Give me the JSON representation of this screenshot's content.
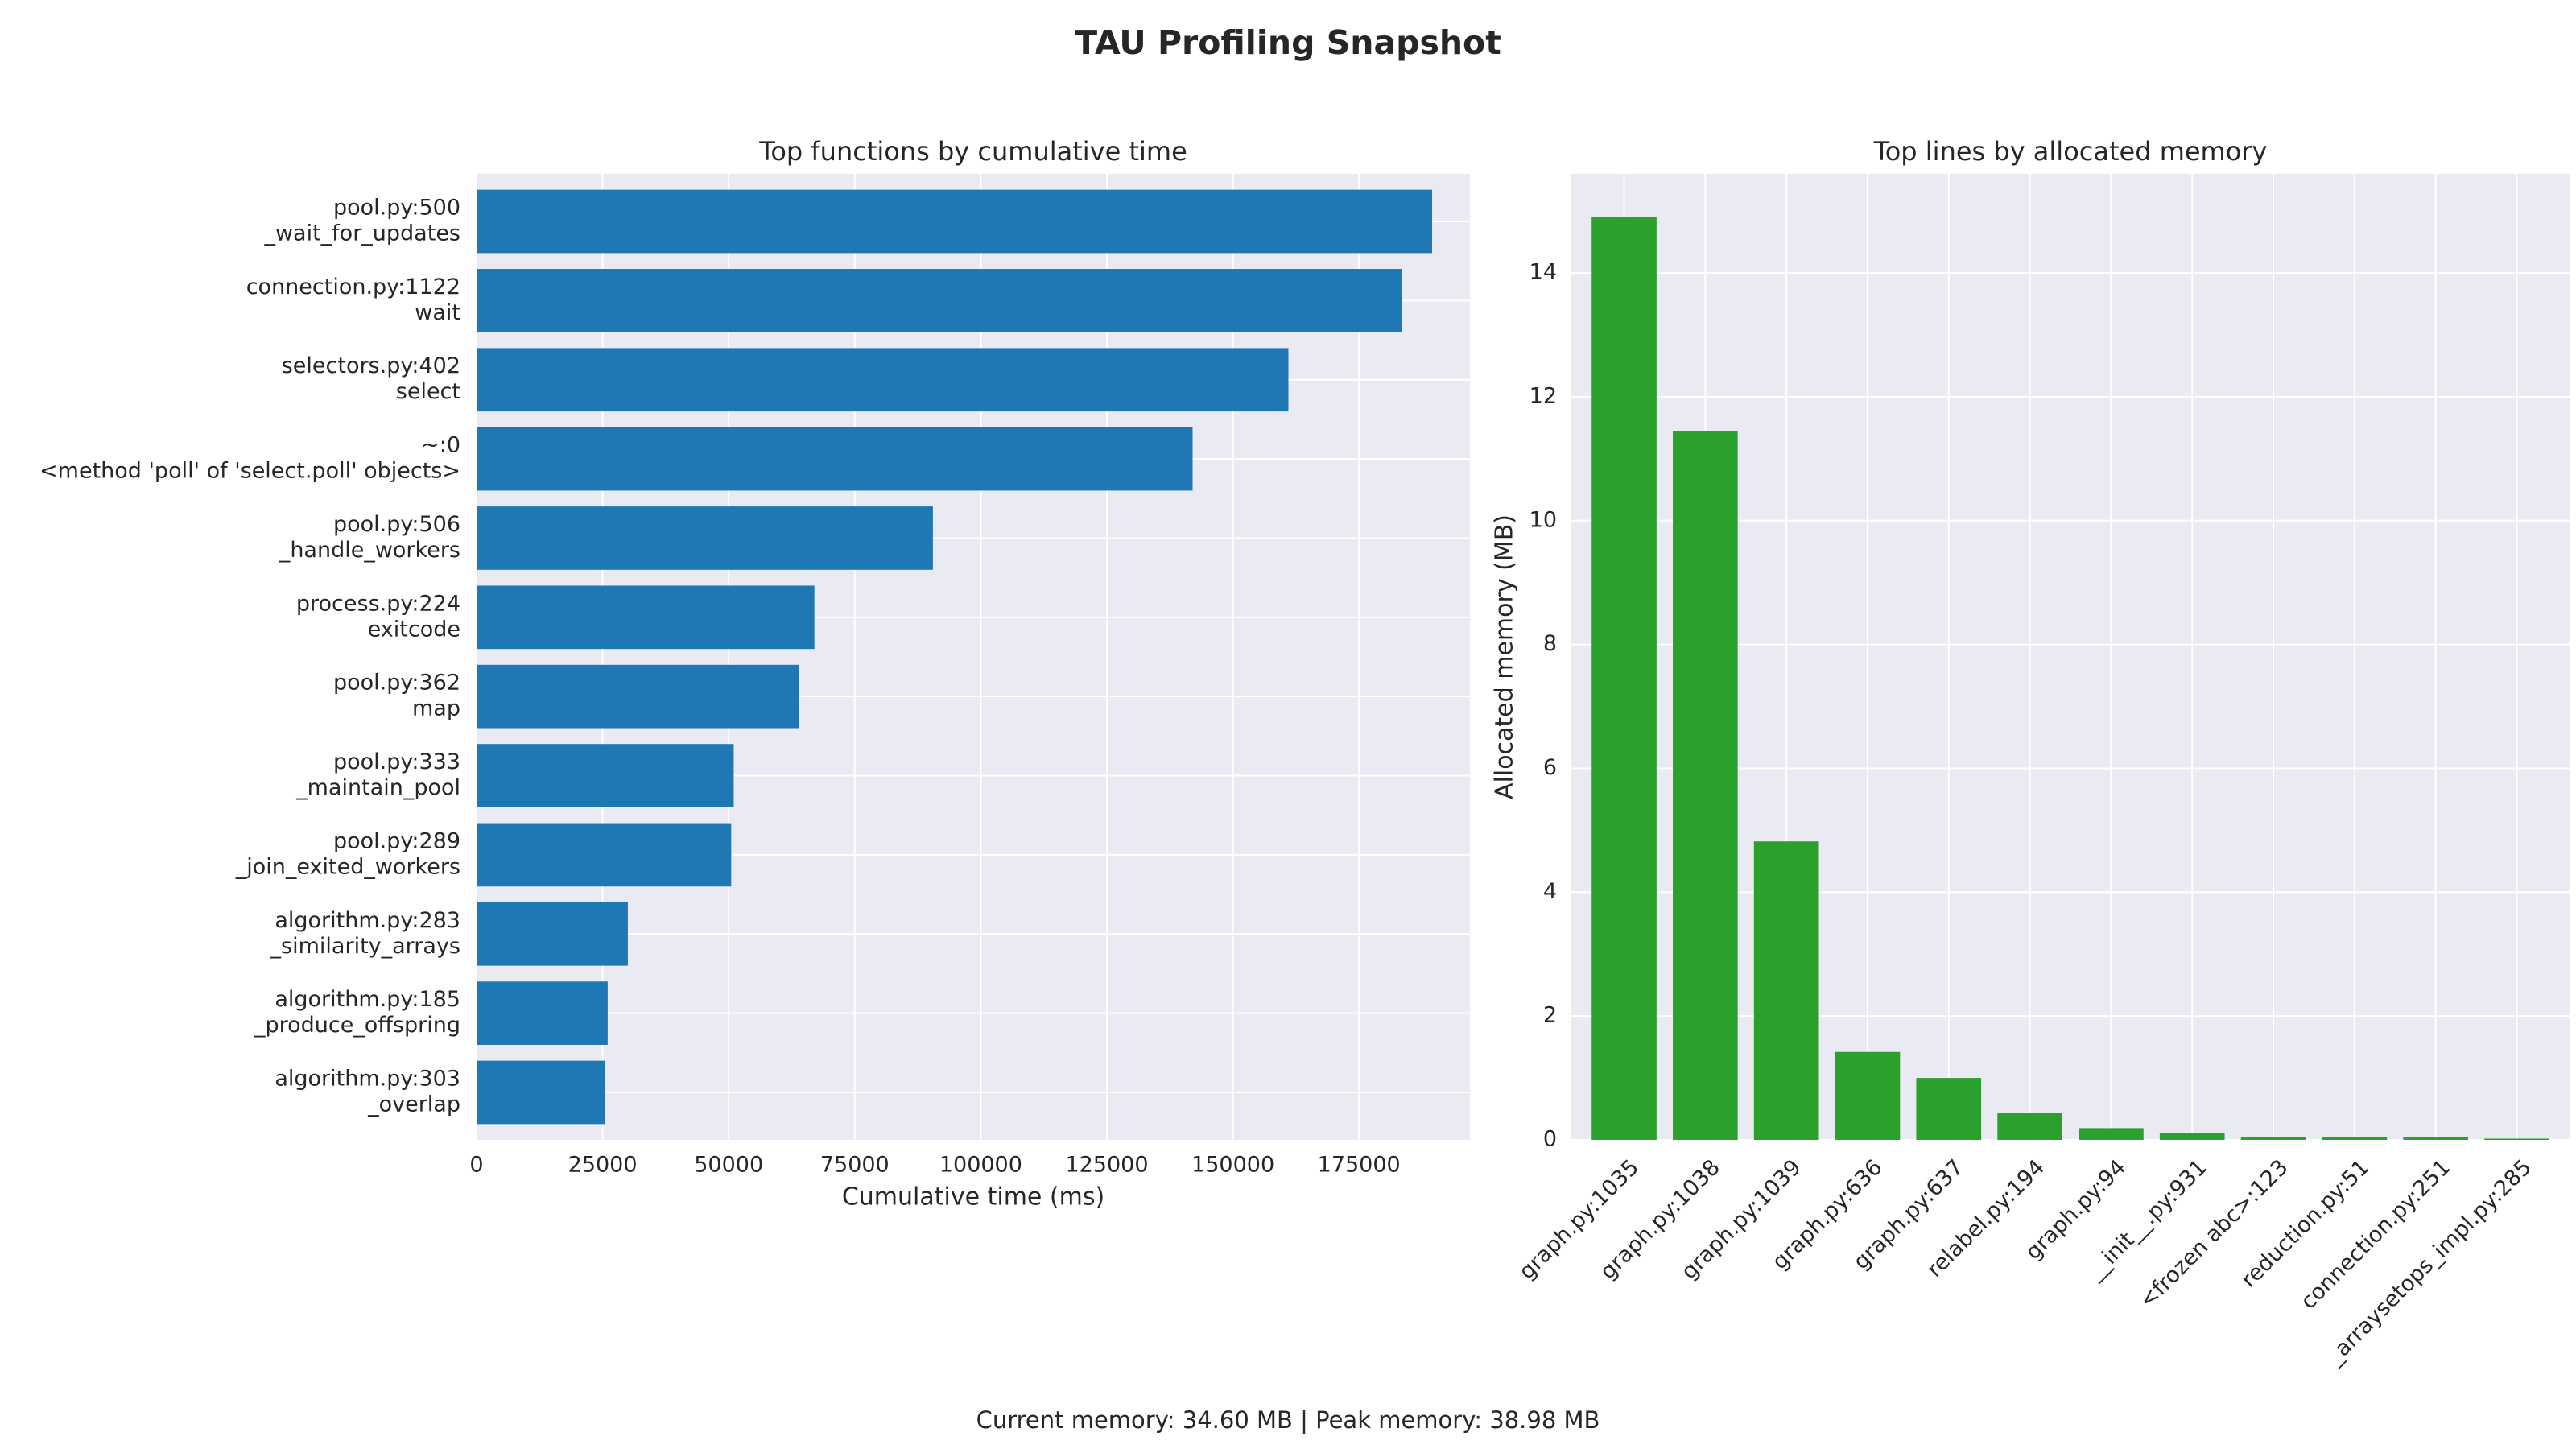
{
  "figure_title": "TAU Profiling Snapshot",
  "footer": "Current memory: 34.60 MB | Peak memory: 38.98 MB",
  "colors": {
    "axes_bg": "#eaeaf2",
    "grid": "#ffffff",
    "left_bar": "#1f77b4",
    "right_bar": "#2ca02c"
  },
  "chart_data": [
    {
      "type": "bar",
      "orientation": "horizontal",
      "title": "Top functions by cumulative time",
      "xlabel": "Cumulative time (ms)",
      "ylabel": "",
      "xlim": [
        0,
        197000
      ],
      "xticks": [
        0,
        25000,
        50000,
        75000,
        100000,
        125000,
        150000,
        175000
      ],
      "grid": true,
      "categories": [
        [
          "pool.py:500",
          "_wait_for_updates"
        ],
        [
          "connection.py:1122",
          "wait"
        ],
        [
          "selectors.py:402",
          "select"
        ],
        [
          "~:0",
          "<method 'poll' of 'select.poll' objects>"
        ],
        [
          "pool.py:506",
          "_handle_workers"
        ],
        [
          "process.py:224",
          "exitcode"
        ],
        [
          "pool.py:362",
          "map"
        ],
        [
          "pool.py:333",
          "_maintain_pool"
        ],
        [
          "pool.py:289",
          "_join_exited_workers"
        ],
        [
          "algorithm.py:283",
          "_similarity_arrays"
        ],
        [
          "algorithm.py:185",
          "_produce_offspring"
        ],
        [
          "algorithm.py:303",
          "_overlap"
        ]
      ],
      "values": [
        189500,
        183500,
        161000,
        142000,
        90500,
        67000,
        64000,
        51000,
        50500,
        30000,
        26000,
        25500
      ]
    },
    {
      "type": "bar",
      "orientation": "vertical",
      "title": "Top lines by allocated memory",
      "xlabel": "",
      "ylabel": "Allocated memory (MB)",
      "ylim": [
        0,
        15.6
      ],
      "yticks": [
        0,
        2,
        4,
        6,
        8,
        10,
        12,
        14
      ],
      "grid": true,
      "categories": [
        "graph.py:1035",
        "graph.py:1038",
        "graph.py:1039",
        "graph.py:636",
        "graph.py:637",
        "relabel.py:194",
        "graph.py:94",
        "__init__.py:931",
        "<frozen abc>:123",
        "reduction.py:51",
        "connection.py:251",
        "_arraysetops_impl.py:285"
      ],
      "values": [
        14.9,
        11.45,
        4.82,
        1.42,
        1.0,
        0.43,
        0.19,
        0.11,
        0.05,
        0.04,
        0.04,
        0.02
      ]
    }
  ]
}
